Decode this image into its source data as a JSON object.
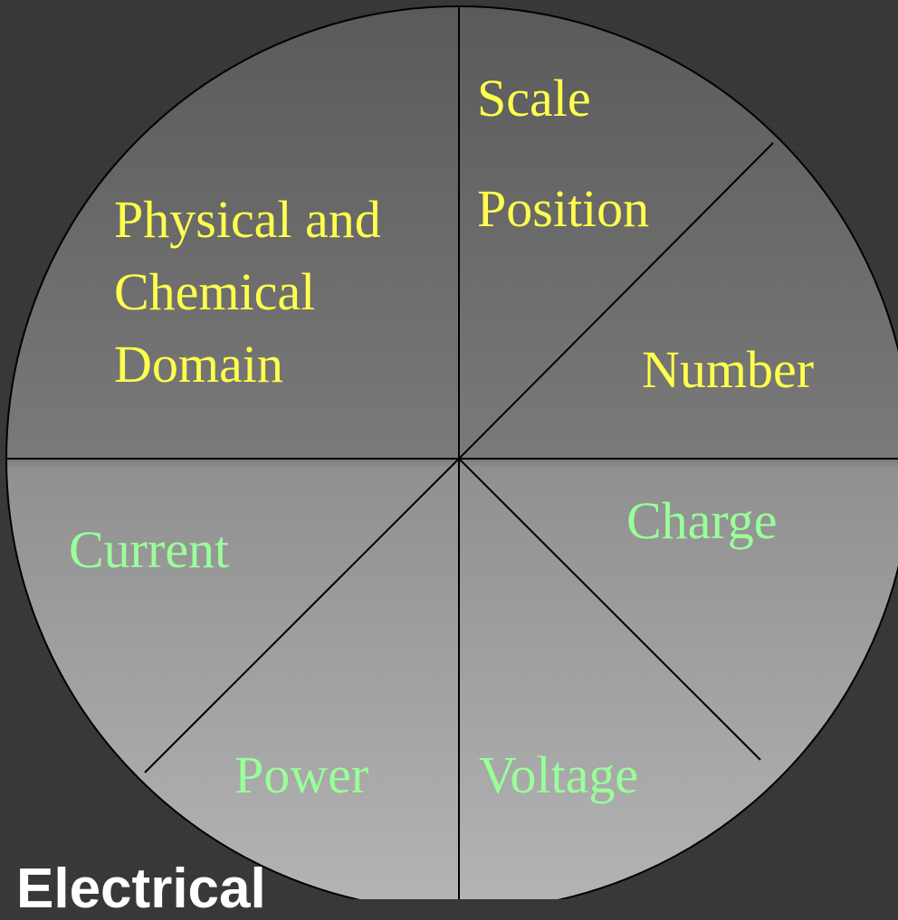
{
  "diagram": {
    "type": "segmented-circle",
    "segments": {
      "physical_chemical": {
        "lines": [
          "Physical and",
          "Chemical",
          "Domain"
        ],
        "color": "#ffff4d"
      },
      "scale_position": {
        "lines": [
          "Scale",
          "Position"
        ],
        "color": "#ffff4d"
      },
      "number": {
        "lines": [
          "Number"
        ],
        "color": "#ffff4d"
      },
      "current": {
        "lines": [
          "Current"
        ],
        "color": "#99ff99"
      },
      "charge": {
        "lines": [
          "Charge"
        ],
        "color": "#99ff99"
      },
      "power": {
        "lines": [
          "Power"
        ],
        "color": "#99ff99"
      },
      "voltage": {
        "lines": [
          "Voltage"
        ],
        "color": "#99ff99"
      }
    }
  },
  "caption": {
    "text": "Electrical"
  },
  "colors": {
    "background": "#383838",
    "circle_top": "#5a5a5a",
    "circle_bottom": "#b4b4b4",
    "divider": "#000000"
  }
}
